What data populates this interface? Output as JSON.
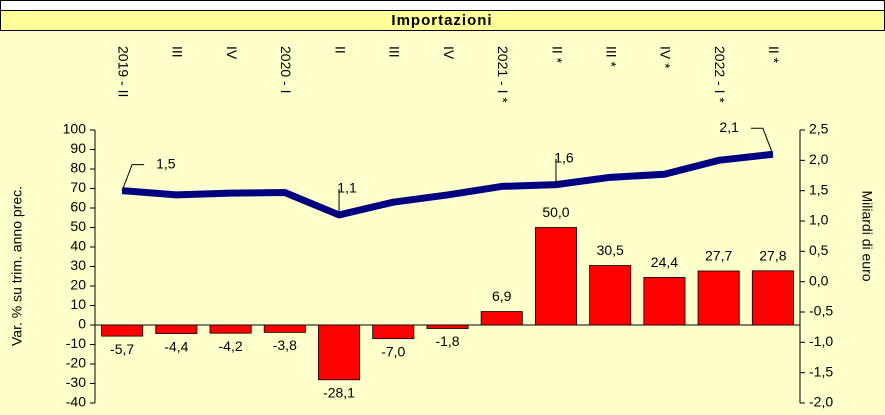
{
  "chart_data": {
    "type": "bar",
    "title": "Importazioni",
    "ylabel": "Var. % su trim. anno prec.",
    "y2label": "Miliardi di euro",
    "categories": [
      "2019 - II",
      "III",
      "IV",
      "2020 - I",
      "II",
      "III",
      "IV",
      "2021 - I *",
      "II *",
      "III *",
      "IV *",
      "2022 - I *",
      "II *"
    ],
    "series": [
      {
        "type": "bar",
        "color": "#ff0000",
        "values": [
          -5.7,
          -4.4,
          -4.2,
          -3.8,
          -28.1,
          -7.0,
          -1.8,
          6.9,
          50.0,
          30.5,
          24.4,
          27.7,
          27.8
        ],
        "value_labels": [
          "-5,7",
          "-4,4",
          "-4,2",
          "-3,8",
          "-28,1",
          "-7,0",
          "-1,8",
          "6,9",
          "50,0",
          "30,5",
          "24,4",
          "27,7",
          "27,8"
        ]
      },
      {
        "type": "line",
        "axis": "y2",
        "color": "#000080",
        "values": [
          1.5,
          1.43,
          1.46,
          1.47,
          1.1,
          1.31,
          1.43,
          1.57,
          1.6,
          1.72,
          1.77,
          2.0,
          2.1
        ],
        "value_labels": [
          "1,5",
          null,
          null,
          null,
          "1,1",
          null,
          null,
          null,
          "1,6",
          null,
          null,
          null,
          "2,1"
        ]
      }
    ],
    "ylim": [
      -40,
      100
    ],
    "yticks": [
      -40,
      -30,
      -20,
      -10,
      0,
      10,
      20,
      30,
      40,
      50,
      60,
      70,
      80,
      90,
      100
    ],
    "y2lim": [
      -2.0,
      2.5
    ],
    "y2ticks": [
      {
        "value": -2.0,
        "label": "-2,0"
      },
      {
        "value": -1.5,
        "label": "-1,5"
      },
      {
        "value": -1.0,
        "label": "-1,0"
      },
      {
        "value": -0.5,
        "label": "-0,5"
      },
      {
        "value": 0.0,
        "label": "0,0"
      },
      {
        "value": 0.5,
        "label": "0,5"
      },
      {
        "value": 1.0,
        "label": "1,0"
      },
      {
        "value": 1.5,
        "label": "1,5"
      },
      {
        "value": 2.0,
        "label": "2,0"
      },
      {
        "value": 2.5,
        "label": "2,5"
      }
    ]
  }
}
